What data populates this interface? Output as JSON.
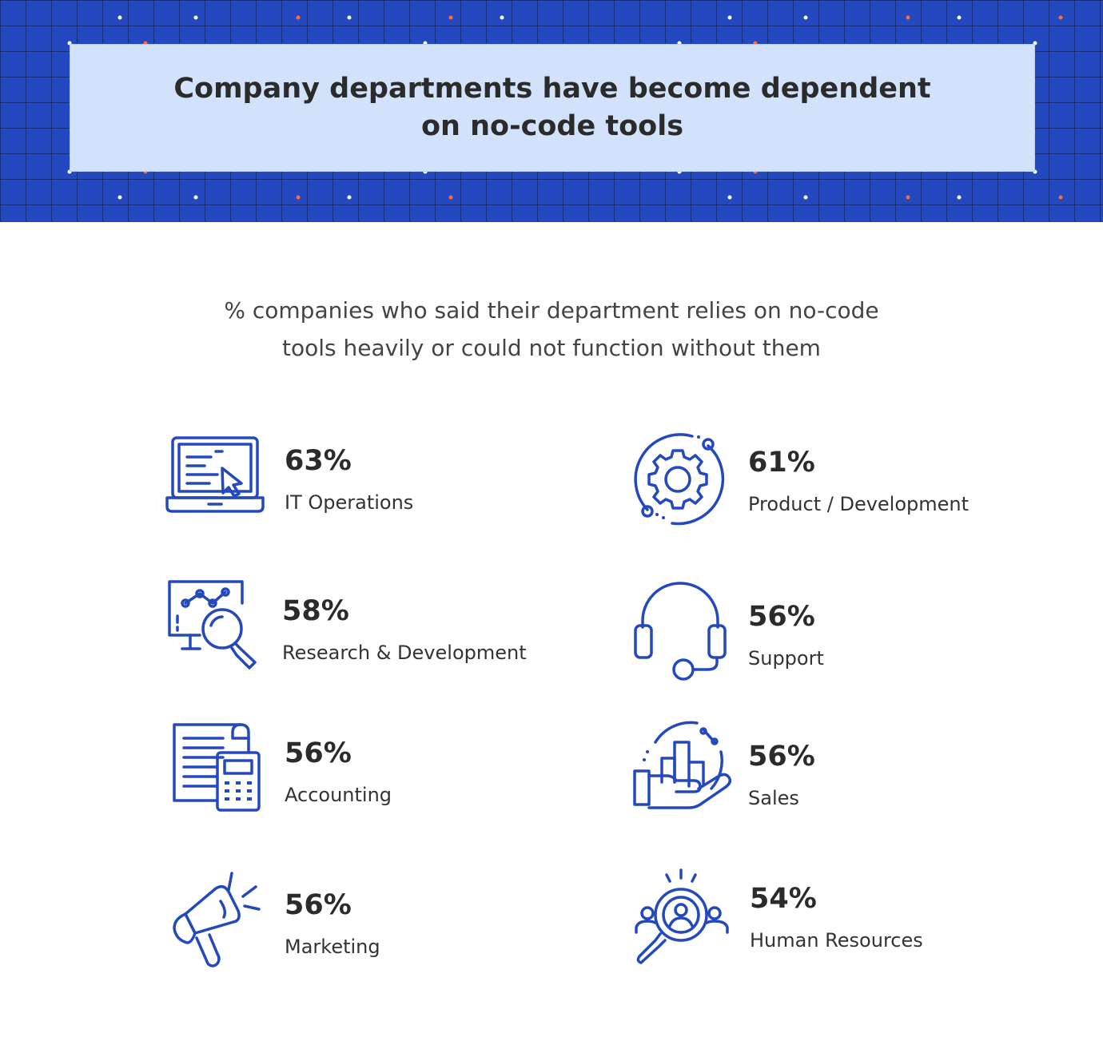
{
  "header": {
    "title_line1": "Company departments have become dependent",
    "title_line2": "on no-code tools"
  },
  "subtitle_line1": "% companies who said their department relies on no-code",
  "subtitle_line2": "tools heavily or could not function without them",
  "colors": {
    "banner": "#2448bd",
    "title_box": "#d3e2fb",
    "icon": "#2448bd",
    "dot_accent": "#ff6a3d"
  },
  "departments": [
    {
      "percent": "63%",
      "name": "IT Operations",
      "icon": "laptop-cursor-icon"
    },
    {
      "percent": "61%",
      "name": "Product / Development",
      "icon": "gear-orbit-icon"
    },
    {
      "percent": "58%",
      "name": "Research & Development",
      "icon": "monitor-magnifier-icon"
    },
    {
      "percent": "56%",
      "name": "Support",
      "icon": "headset-icon"
    },
    {
      "percent": "56%",
      "name": "Accounting",
      "icon": "document-calculator-icon"
    },
    {
      "percent": "56%",
      "name": "Sales",
      "icon": "hand-bar-chart-icon"
    },
    {
      "percent": "56%",
      "name": "Marketing",
      "icon": "megaphone-icon"
    },
    {
      "percent": "54%",
      "name": "Human Resources",
      "icon": "people-search-icon"
    }
  ]
}
